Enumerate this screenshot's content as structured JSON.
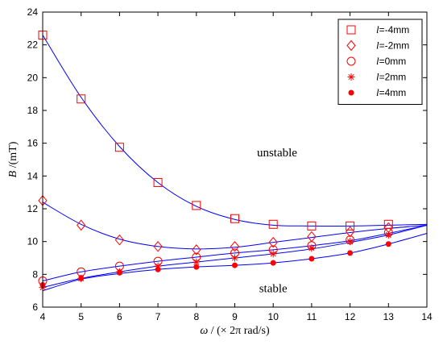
{
  "chart_data": {
    "type": "scatter",
    "title": "",
    "xlabel_italic": "ω",
    "xlabel_rest": " / (× 2π rad/s)",
    "ylabel_italic": "B",
    "ylabel_rest": " /(mT)",
    "xlim": [
      4,
      14
    ],
    "ylim": [
      6,
      24
    ],
    "xticks": [
      "4",
      "5",
      "6",
      "7",
      "8",
      "9",
      "10",
      "11",
      "12",
      "13",
      "14"
    ],
    "yticks": [
      "6",
      "8",
      "10",
      "12",
      "14",
      "16",
      "18",
      "20",
      "22",
      "24"
    ],
    "grid": false,
    "legend_position": "top-right",
    "marker_color": "#ff0000",
    "fit_color": "#0000ff",
    "annotations": [
      {
        "text": "unstable",
        "x": 10.1,
        "y": 15.2
      },
      {
        "text": "stable",
        "x": 10.0,
        "y": 6.9
      }
    ],
    "series": [
      {
        "legend_var": "l",
        "legend_value": "=-4mm",
        "marker": "square",
        "x": [
          4,
          5,
          6,
          7,
          8,
          9,
          10,
          11,
          12,
          13
        ],
        "y": [
          22.6,
          18.7,
          15.75,
          13.6,
          12.2,
          11.4,
          11.05,
          10.95,
          10.95,
          11.05
        ],
        "fit_y": [
          22.6,
          18.8,
          15.8,
          13.6,
          12.15,
          11.35,
          11.0,
          10.95,
          10.95,
          11.0,
          11.05
        ]
      },
      {
        "legend_var": "l",
        "legend_value": "=-2mm",
        "marker": "diamond",
        "x": [
          4,
          5,
          6,
          7,
          8,
          9,
          10,
          11,
          12,
          13
        ],
        "y": [
          12.5,
          11.0,
          10.1,
          9.7,
          9.5,
          9.7,
          9.95,
          10.3,
          10.6,
          10.85
        ],
        "fit_y": [
          12.4,
          11.05,
          10.15,
          9.7,
          9.55,
          9.65,
          9.95,
          10.25,
          10.55,
          10.8,
          11.0
        ]
      },
      {
        "legend_var": "l",
        "legend_value": "=0mm",
        "marker": "circle",
        "x": [
          4,
          5,
          6,
          7,
          8,
          9,
          10,
          11,
          12,
          13
        ],
        "y": [
          7.6,
          8.15,
          8.5,
          8.8,
          9.05,
          9.3,
          9.5,
          9.75,
          10.1,
          10.55
        ],
        "fit_y": [
          7.6,
          8.15,
          8.5,
          8.8,
          9.05,
          9.3,
          9.5,
          9.75,
          10.05,
          10.5,
          11.0
        ]
      },
      {
        "legend_var": "l",
        "legend_value": "=2mm",
        "marker": "star",
        "x": [
          4,
          5,
          6,
          7,
          8,
          9,
          10,
          11,
          12,
          13
        ],
        "y": [
          7.2,
          7.75,
          8.15,
          8.5,
          8.75,
          9.0,
          9.25,
          9.6,
          10.0,
          10.4
        ],
        "fit_y": [
          7.2,
          7.75,
          8.15,
          8.5,
          8.75,
          9.0,
          9.25,
          9.55,
          9.95,
          10.4,
          11.0
        ]
      },
      {
        "legend_var": "l",
        "legend_value": "=4mm",
        "marker": "dot",
        "x": [
          4,
          5,
          6,
          7,
          8,
          9,
          10,
          11,
          12,
          13
        ],
        "y": [
          7.35,
          7.75,
          8.1,
          8.3,
          8.45,
          8.55,
          8.7,
          8.95,
          9.3,
          9.85
        ],
        "fit_y": [
          7.0,
          7.7,
          8.05,
          8.3,
          8.45,
          8.55,
          8.7,
          8.95,
          9.3,
          9.85,
          10.5
        ]
      }
    ]
  }
}
